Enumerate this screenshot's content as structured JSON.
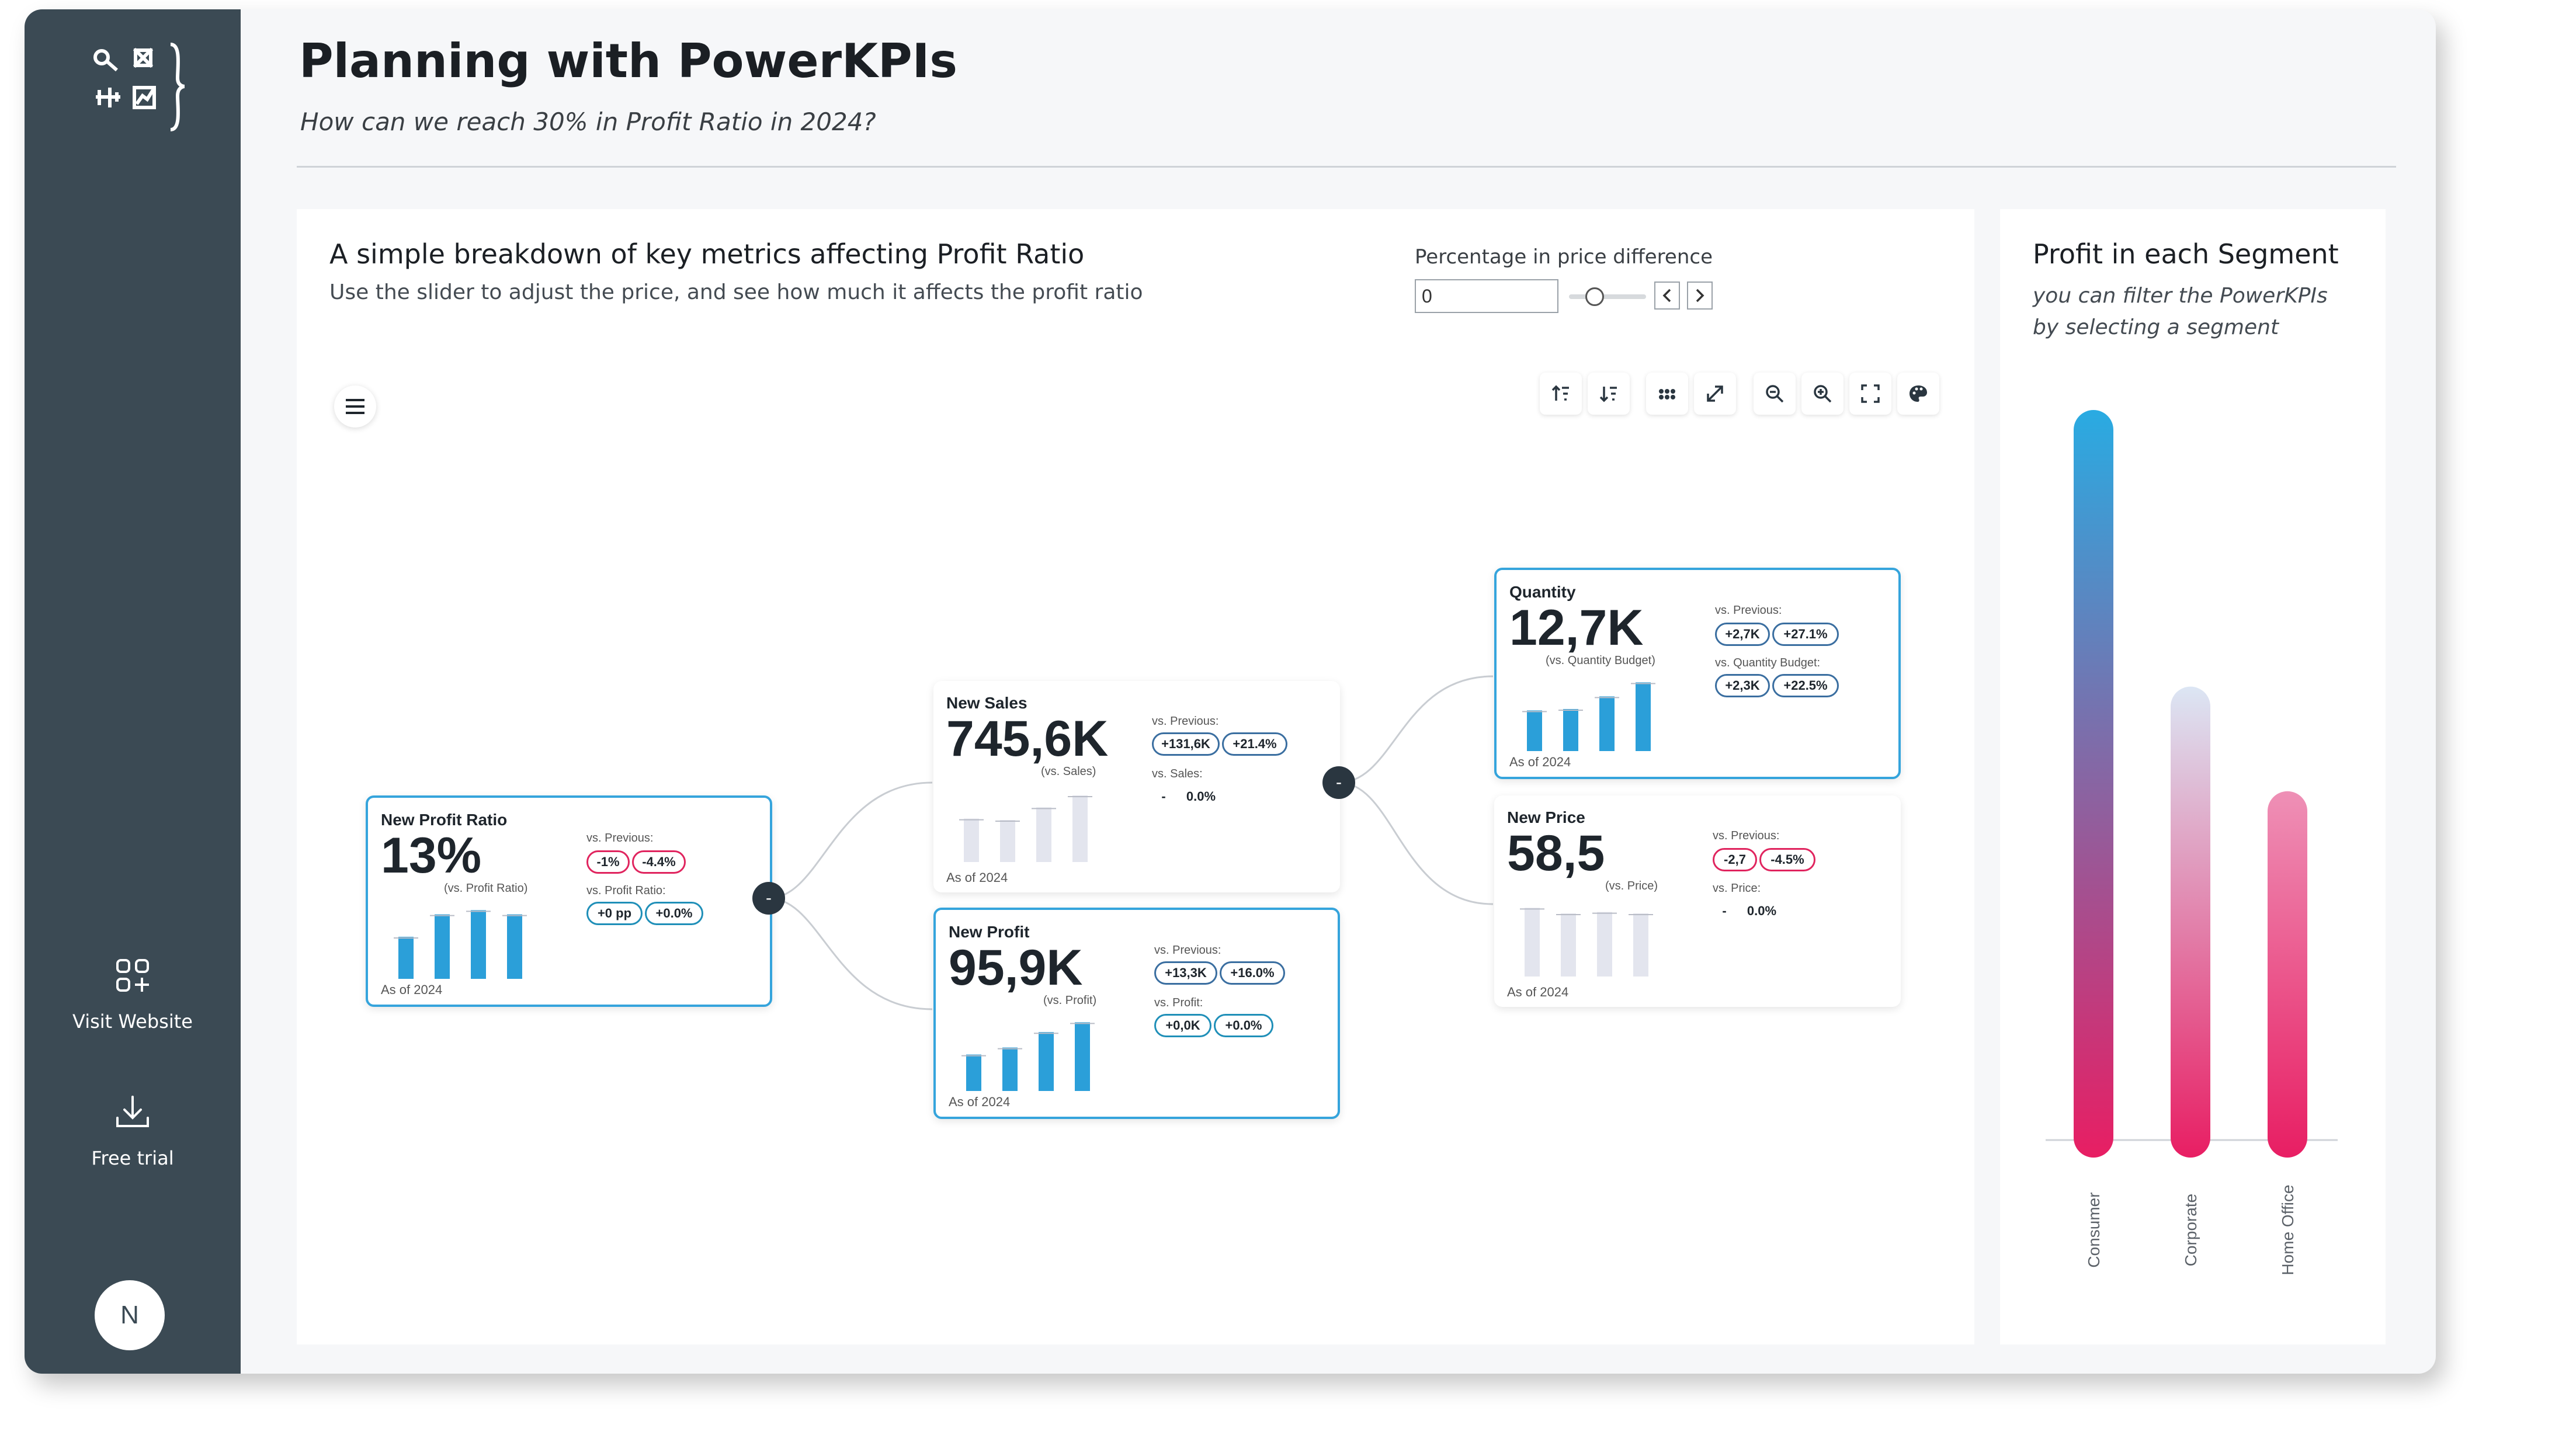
{
  "header": {
    "title": "Planning with PowerKPIs",
    "subtitle": "How can we reach 30% in Profit Ratio in 2024?"
  },
  "sidebar": {
    "visit_label": "Visit Website",
    "trial_label": "Free trial",
    "avatar_initial": "N"
  },
  "breakdown": {
    "title": "A simple breakdown of key metrics affecting Profit Ratio",
    "subtitle": "Use the slider to adjust the price, and see how much it affects the profit ratio",
    "control_label": "Percentage in price difference",
    "control_value": "0"
  },
  "toolbar_icons": [
    "sort-ascending-icon",
    "sort-descending-icon",
    "dots-icon",
    "expand-icon",
    "zoom-out-icon",
    "zoom-in-icon",
    "fit-screen-icon",
    "palette-icon"
  ],
  "kpis": {
    "profit_ratio": {
      "name": "New Profit Ratio",
      "value": "13%",
      "vs": "(vs. Profit Ratio)",
      "as_of": "As of 2024",
      "cmp1_label": "vs. Previous:",
      "cmp1_a": "-1%",
      "cmp1_b": "-4.4%",
      "cmp2_label": "vs. Profit Ratio:",
      "cmp2_a": "+0 pp",
      "cmp2_b": "+0.0%",
      "bars": [
        0.6,
        0.92,
        0.98,
        0.92
      ],
      "bar_color": "#2b9fd9"
    },
    "sales": {
      "name": "New Sales",
      "value": "745,6K",
      "vs": "(vs. Sales)",
      "as_of": "As of 2024",
      "cmp1_label": "vs. Previous:",
      "cmp1_a": "+131,6K",
      "cmp1_b": "+21.4%",
      "cmp2_label": "vs. Sales:",
      "cmp2_a": "-",
      "cmp2_b": "0.0%",
      "bars": [
        0.62,
        0.6,
        0.78,
        0.95
      ],
      "bar_color": "#e3e5ee"
    },
    "profit": {
      "name": "New Profit",
      "value": "95,9K",
      "vs": "(vs. Profit)",
      "as_of": "As of 2024",
      "cmp1_label": "vs. Previous:",
      "cmp1_a": "+13,3K",
      "cmp1_b": "+16.0%",
      "cmp2_label": "vs. Profit:",
      "cmp2_a": "+0,0K",
      "cmp2_b": "+0.0%",
      "bars": [
        0.52,
        0.62,
        0.84,
        0.98
      ],
      "bar_color": "#2b9fd9"
    },
    "quantity": {
      "name": "Quantity",
      "value": "12,7K",
      "vs": "(vs. Quantity Budget)",
      "as_of": "As of 2024",
      "cmp1_label": "vs. Previous:",
      "cmp1_a": "+2,7K",
      "cmp1_b": "+27.1%",
      "cmp2_label": "vs. Quantity Budget:",
      "cmp2_a": "+2,3K",
      "cmp2_b": "+22.5%",
      "bars": [
        0.58,
        0.6,
        0.78,
        0.98
      ],
      "bar_color": "#2b9fd9"
    },
    "price": {
      "name": "New Price",
      "value": "58,5",
      "vs": "(vs. Price)",
      "as_of": "As of 2024",
      "cmp1_label": "vs. Previous:",
      "cmp1_a": "-2,7",
      "cmp1_b": "-4.5%",
      "cmp2_label": "vs. Price:",
      "cmp2_a": "-",
      "cmp2_b": "0.0%",
      "bars": [
        0.98,
        0.9,
        0.92,
        0.9
      ],
      "bar_color": "#e3e5ee"
    }
  },
  "segment": {
    "title": "Profit in each Segment",
    "subtitle": "you can filter the PowerKPIs by selecting a segment"
  },
  "chart_data": {
    "type": "bar",
    "categories": [
      "Consumer",
      "Corporate",
      "Home Office"
    ],
    "values": [
      100,
      63,
      49
    ],
    "ylim": [
      0,
      100
    ],
    "colors": [
      "#29abe2",
      "#dce6f4",
      "#ee90b6"
    ],
    "base_color": "#e81e63",
    "grid": false
  }
}
